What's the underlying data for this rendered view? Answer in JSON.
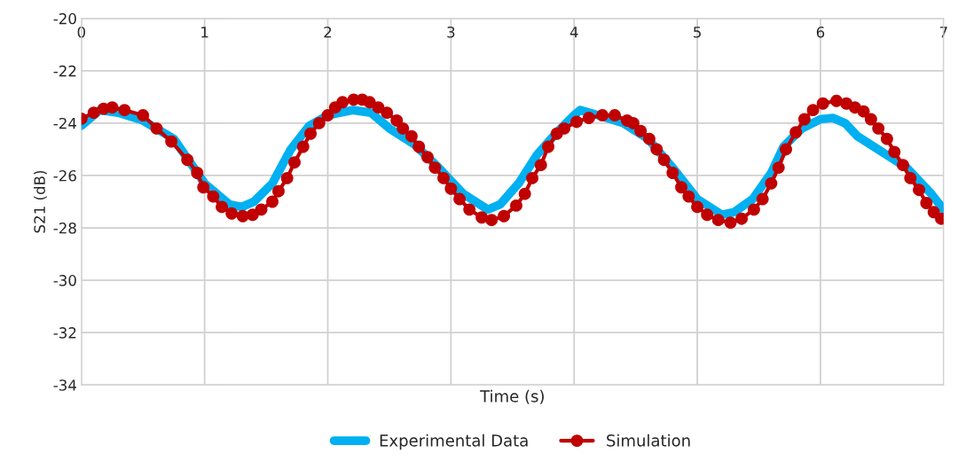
{
  "chart_data": {
    "type": "line",
    "xlabel": "Time (s)",
    "ylabel": "S21 (dB)",
    "xlim": [
      0,
      7
    ],
    "xticks": [
      0,
      1,
      2,
      3,
      4,
      5,
      6,
      7
    ],
    "ylim": [
      -34,
      -20
    ],
    "yticks": [
      -34,
      -32,
      -30,
      -28,
      -26,
      -24,
      -22,
      -20
    ],
    "grid": true,
    "legend": "bottom",
    "series": [
      {
        "name": "Experimental Data",
        "color": "#00b0f0",
        "marker": "circle",
        "x": [
          0,
          0.15,
          0.3,
          0.5,
          0.75,
          1.0,
          1.2,
          1.3,
          1.4,
          1.55,
          1.7,
          1.85,
          2.0,
          2.2,
          2.35,
          2.5,
          2.7,
          2.9,
          3.1,
          3.3,
          3.4,
          3.55,
          3.7,
          3.85,
          4.0,
          4.05,
          4.2,
          4.4,
          4.6,
          4.8,
          5.0,
          5.2,
          5.3,
          5.45,
          5.6,
          5.7,
          5.85,
          6.0,
          6.1,
          6.2,
          6.3,
          6.5,
          6.7,
          6.9,
          7.0
        ],
        "values": [
          -24.1,
          -23.5,
          -23.6,
          -23.9,
          -24.6,
          -26.3,
          -27.1,
          -27.2,
          -27.0,
          -26.3,
          -25.0,
          -24.1,
          -23.7,
          -23.5,
          -23.6,
          -24.2,
          -24.8,
          -25.7,
          -26.7,
          -27.3,
          -27.1,
          -26.3,
          -25.2,
          -24.4,
          -23.7,
          -23.5,
          -23.7,
          -24.0,
          -24.6,
          -25.7,
          -26.9,
          -27.5,
          -27.4,
          -26.9,
          -25.9,
          -24.9,
          -24.2,
          -23.85,
          -23.8,
          -24.0,
          -24.5,
          -25.1,
          -25.7,
          -26.7,
          -27.3
        ]
      },
      {
        "name": "Simulation",
        "color": "#c00000",
        "marker": "circle",
        "x": [
          0,
          0.1,
          0.18,
          0.25,
          0.35,
          0.5,
          0.61,
          0.73,
          0.86,
          0.94,
          0.99,
          1.07,
          1.14,
          1.22,
          1.31,
          1.39,
          1.46,
          1.55,
          1.6,
          1.67,
          1.73,
          1.8,
          1.86,
          1.93,
          2.0,
          2.06,
          2.12,
          2.21,
          2.28,
          2.34,
          2.41,
          2.48,
          2.56,
          2.61,
          2.68,
          2.74,
          2.81,
          2.87,
          2.94,
          3.0,
          3.07,
          3.15,
          3.25,
          3.33,
          3.43,
          3.53,
          3.6,
          3.66,
          3.73,
          3.79,
          3.86,
          3.92,
          4.02,
          4.12,
          4.23,
          4.33,
          4.43,
          4.48,
          4.54,
          4.61,
          4.67,
          4.73,
          4.8,
          4.87,
          4.93,
          5.0,
          5.08,
          5.17,
          5.27,
          5.36,
          5.46,
          5.53,
          5.6,
          5.66,
          5.72,
          5.8,
          5.87,
          5.94,
          6.02,
          6.13,
          6.21,
          6.28,
          6.35,
          6.41,
          6.47,
          6.54,
          6.6,
          6.67,
          6.73,
          6.8,
          6.86,
          6.92,
          6.98
        ],
        "values": [
          -23.83,
          -23.6,
          -23.45,
          -23.4,
          -23.5,
          -23.7,
          -24.2,
          -24.7,
          -25.4,
          -25.9,
          -26.45,
          -26.8,
          -27.2,
          -27.45,
          -27.55,
          -27.5,
          -27.3,
          -27.0,
          -26.6,
          -26.1,
          -25.5,
          -24.9,
          -24.4,
          -24.0,
          -23.7,
          -23.4,
          -23.2,
          -23.1,
          -23.1,
          -23.2,
          -23.4,
          -23.6,
          -23.9,
          -24.2,
          -24.5,
          -24.9,
          -25.3,
          -25.7,
          -26.1,
          -26.5,
          -26.9,
          -27.3,
          -27.6,
          -27.7,
          -27.55,
          -27.15,
          -26.7,
          -26.1,
          -25.6,
          -24.9,
          -24.4,
          -24.2,
          -23.95,
          -23.8,
          -23.7,
          -23.7,
          -23.9,
          -24.0,
          -24.3,
          -24.6,
          -25.0,
          -25.4,
          -25.9,
          -26.45,
          -26.8,
          -27.2,
          -27.5,
          -27.7,
          -27.8,
          -27.65,
          -27.3,
          -26.9,
          -26.3,
          -25.7,
          -25.0,
          -24.35,
          -23.85,
          -23.5,
          -23.25,
          -23.15,
          -23.25,
          -23.4,
          -23.55,
          -23.85,
          -24.2,
          -24.6,
          -25.1,
          -25.6,
          -26.1,
          -26.55,
          -27.05,
          -27.4,
          -27.65
        ]
      }
    ]
  }
}
